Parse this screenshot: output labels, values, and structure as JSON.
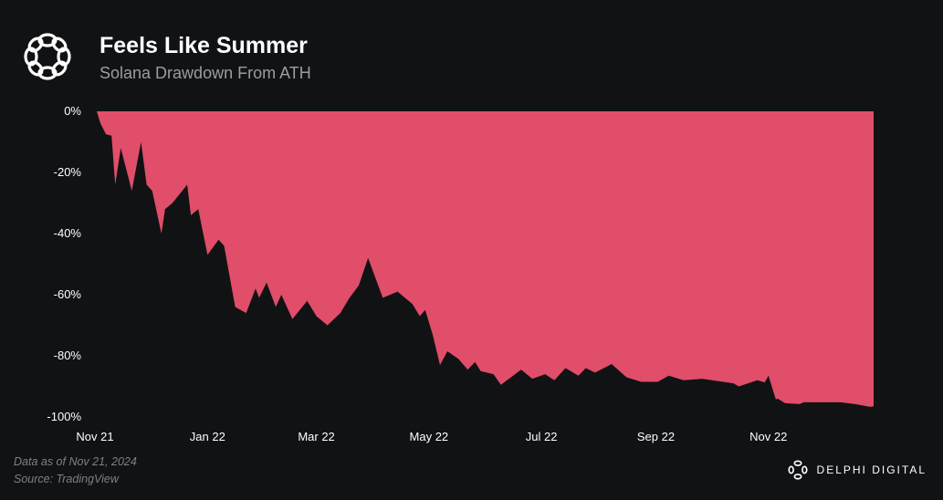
{
  "header": {
    "title": "Feels Like Summer",
    "subtitle": "Solana Drawdown From ATH",
    "logo_icon": "delphi-knot-logo"
  },
  "footer": {
    "note": "Data as of Nov 21, 2024",
    "source": "Source: TradingView",
    "brand": "DELPHI DIGITAL"
  },
  "colors": {
    "background": "#111214",
    "area": "#e04e6a",
    "text": "#ffffff",
    "muted": "#9a9da3"
  },
  "chart_data": {
    "type": "area",
    "title": "Feels Like Summer",
    "subtitle": "Solana Drawdown From ATH",
    "xlabel": "",
    "ylabel": "",
    "xlim": [
      "2021-11-01",
      "2022-12-28"
    ],
    "ylim": [
      -100,
      0
    ],
    "y_ticks": [
      0,
      -20,
      -40,
      -60,
      -80,
      -100
    ],
    "y_tick_labels": [
      "0%",
      "-20%",
      "-40%",
      "-60%",
      "-80%",
      "-100%"
    ],
    "x_ticks": [
      "2021-11-01",
      "2022-01-01",
      "2022-03-01",
      "2022-05-01",
      "2022-07-01",
      "2022-09-01",
      "2022-11-01"
    ],
    "x_tick_labels": [
      "Nov 21",
      "Jan 22",
      "Mar 22",
      "May 22",
      "Jul 22",
      "Sep 22",
      "Nov 22"
    ],
    "fill": "between series and 0%",
    "grid": false,
    "points": [
      [
        "2021-11-02",
        0
      ],
      [
        "2021-11-04",
        -4
      ],
      [
        "2021-11-07",
        -7.5
      ],
      [
        "2021-11-10",
        -8
      ],
      [
        "2021-11-12",
        -24
      ],
      [
        "2021-11-15",
        -12
      ],
      [
        "2021-11-21",
        -26
      ],
      [
        "2021-11-26",
        -10
      ],
      [
        "2021-11-29",
        -24
      ],
      [
        "2021-12-02",
        -26
      ],
      [
        "2021-12-07",
        -40
      ],
      [
        "2021-12-09",
        -32
      ],
      [
        "2021-12-13",
        -30
      ],
      [
        "2021-12-21",
        -24
      ],
      [
        "2021-12-23",
        -34
      ],
      [
        "2021-12-27",
        -32
      ],
      [
        "2022-01-01",
        -47
      ],
      [
        "2022-01-07",
        -42
      ],
      [
        "2022-01-10",
        -44
      ],
      [
        "2022-01-16",
        -64
      ],
      [
        "2022-01-22",
        -66
      ],
      [
        "2022-01-27",
        -58
      ],
      [
        "2022-01-29",
        -61
      ],
      [
        "2022-02-02",
        -56
      ],
      [
        "2022-02-07",
        -64
      ],
      [
        "2022-02-10",
        -60
      ],
      [
        "2022-02-16",
        -68
      ],
      [
        "2022-02-24",
        -62
      ],
      [
        "2022-03-01",
        -67
      ],
      [
        "2022-03-07",
        -70
      ],
      [
        "2022-03-14",
        -66
      ],
      [
        "2022-03-19",
        -61
      ],
      [
        "2022-03-24",
        -57
      ],
      [
        "2022-03-29",
        -48
      ],
      [
        "2022-04-06",
        -61
      ],
      [
        "2022-04-14",
        -59
      ],
      [
        "2022-04-22",
        -63
      ],
      [
        "2022-04-26",
        -67
      ],
      [
        "2022-04-29",
        -65
      ],
      [
        "2022-05-03",
        -73
      ],
      [
        "2022-05-07",
        -83
      ],
      [
        "2022-05-11",
        -78.5
      ],
      [
        "2022-05-17",
        -81
      ],
      [
        "2022-05-22",
        -84.5
      ],
      [
        "2022-05-26",
        -82
      ],
      [
        "2022-05-29",
        -85
      ],
      [
        "2022-06-05",
        -86
      ],
      [
        "2022-06-09",
        -89.5
      ],
      [
        "2022-06-20",
        -84.5
      ],
      [
        "2022-06-26",
        -87.5
      ],
      [
        "2022-07-03",
        -86
      ],
      [
        "2022-07-08",
        -88
      ],
      [
        "2022-07-14",
        -84
      ],
      [
        "2022-07-21",
        -86.5
      ],
      [
        "2022-07-25",
        -84
      ],
      [
        "2022-07-30",
        -85.5
      ],
      [
        "2022-08-08",
        -82.7
      ],
      [
        "2022-08-16",
        -87
      ],
      [
        "2022-08-24",
        -88.5
      ],
      [
        "2022-09-02",
        -88.5
      ],
      [
        "2022-09-08",
        -86.5
      ],
      [
        "2022-09-16",
        -88
      ],
      [
        "2022-09-26",
        -87.5
      ],
      [
        "2022-10-13",
        -89
      ],
      [
        "2022-10-16",
        -90
      ],
      [
        "2022-10-26",
        -88
      ],
      [
        "2022-10-30",
        -88.7
      ],
      [
        "2022-11-01",
        -86.5
      ],
      [
        "2022-11-05",
        -94.3
      ],
      [
        "2022-11-06",
        -94
      ],
      [
        "2022-11-10",
        -95.5
      ],
      [
        "2022-11-18",
        -95.8
      ],
      [
        "2022-11-20",
        -95.2
      ],
      [
        "2022-12-10",
        -95.2
      ],
      [
        "2022-12-18",
        -95.8
      ],
      [
        "2022-12-26",
        -96.7
      ],
      [
        "2022-12-28",
        -96.5
      ]
    ]
  }
}
